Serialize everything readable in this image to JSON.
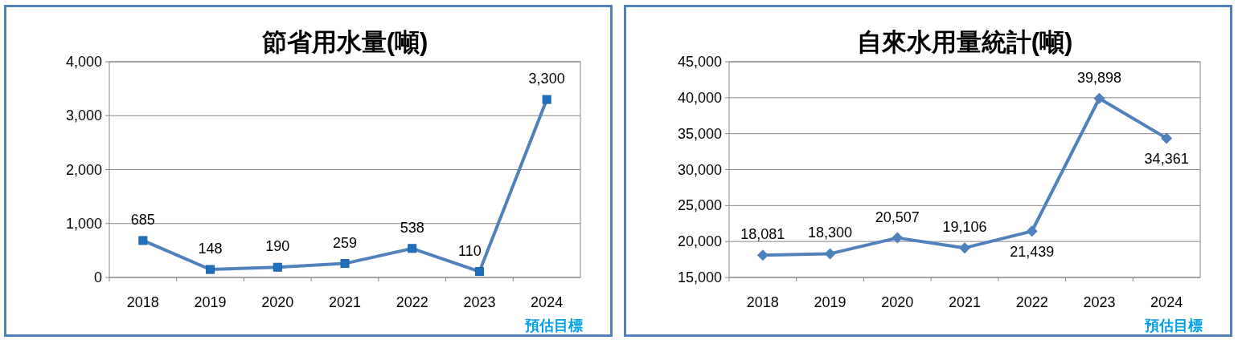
{
  "chart_data": [
    {
      "type": "line",
      "title": "節省用水量(噸)",
      "categories": [
        "2018",
        "2019",
        "2020",
        "2021",
        "2022",
        "2023",
        "2024"
      ],
      "values": [
        685,
        148,
        190,
        259,
        538,
        110,
        3300
      ],
      "value_labels": [
        "685",
        "148",
        "190",
        "259",
        "538",
        "110",
        "3,300"
      ],
      "color": "#4f81bd",
      "marker": "square",
      "grid": "y",
      "ylim": [
        0,
        4000
      ],
      "yticks": [
        {
          "value": 0,
          "label": "0"
        },
        {
          "value": 1000,
          "label": "1,000"
        },
        {
          "value": 2000,
          "label": "2,000"
        },
        {
          "value": 3000,
          "label": "3,000"
        },
        {
          "value": 4000,
          "label": "4,000"
        }
      ],
      "annotations": [
        "預估目標"
      ]
    },
    {
      "type": "line",
      "title": "自來水用量統計(噸)",
      "categories": [
        "2018",
        "2019",
        "2020",
        "2021",
        "2022",
        "2023",
        "2024"
      ],
      "values": [
        18081,
        18300,
        20507,
        19106,
        21439,
        39898,
        34361
      ],
      "value_labels": [
        "18,081",
        "18,300",
        "20,507",
        "19,106",
        "21,439",
        "39,898",
        "34,361"
      ],
      "color": "#4f81bd",
      "marker": "diamond",
      "grid": "y",
      "ylim": [
        15000,
        45000
      ],
      "yticks": [
        {
          "value": 15000,
          "label": "15,000"
        },
        {
          "value": 20000,
          "label": "20,000"
        },
        {
          "value": 25000,
          "label": "25,000"
        },
        {
          "value": 30000,
          "label": "30,000"
        },
        {
          "value": 35000,
          "label": "35,000"
        },
        {
          "value": 40000,
          "label": "40,000"
        },
        {
          "value": 45000,
          "label": "45,000"
        }
      ],
      "annotations": [
        "預估目標"
      ]
    }
  ]
}
